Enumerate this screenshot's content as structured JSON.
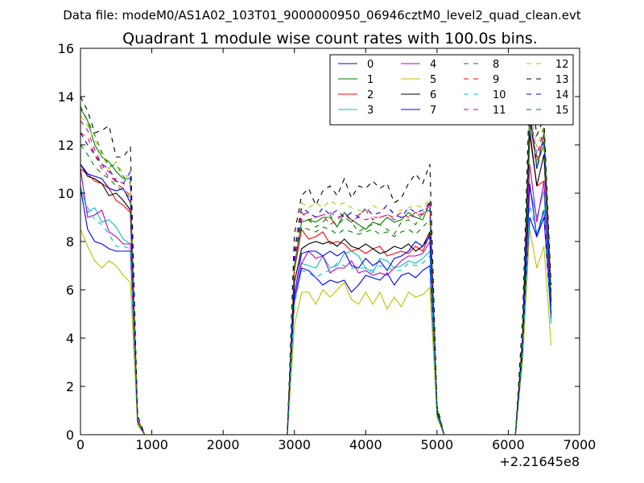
{
  "suptitle": "Data file: modeM0/AS1A02_103T01_9000000950_06946cztM0_level2_quad_clean.evt",
  "chart_data": {
    "type": "line",
    "title": "Quadrant 1 module wise count rates with 100.0s bins.",
    "xlabel": "",
    "ylabel": "",
    "x_offset_label": "+2.21645e8",
    "xlim": [
      0,
      7000
    ],
    "ylim": [
      0,
      16
    ],
    "x_ticks": [
      "0",
      "1000",
      "2000",
      "3000",
      "4000",
      "5000",
      "6000",
      "7000"
    ],
    "y_ticks": [
      "0",
      "2",
      "4",
      "6",
      "8",
      "10",
      "12",
      "14",
      "16"
    ],
    "grid": false,
    "legend_position": "top-right",
    "segments": [
      {
        "x": [
          0,
          100,
          200,
          300,
          400,
          500,
          600,
          700,
          800,
          900
        ]
      },
      {
        "x": [
          2900,
          3000,
          3100,
          3200,
          3300,
          3400,
          3500,
          3600,
          3700,
          3800,
          3900,
          4000,
          4100,
          4200,
          4300,
          4400,
          4500,
          4600,
          4700,
          4800,
          4900,
          5000,
          5100
        ]
      },
      {
        "x": [
          6100,
          6200,
          6300,
          6400,
          6500,
          6600
        ]
      }
    ],
    "series": [
      {
        "name": "0",
        "color": "#0000ff",
        "dash": "solid",
        "values": [
          [
            10.2,
            8.5,
            8.0,
            7.9,
            7.7,
            7.6,
            7.6,
            7.6,
            0.5,
            0
          ],
          [
            0,
            5.5,
            6.9,
            6.8,
            6.5,
            6.2,
            6.4,
            6.3,
            6.4,
            5.9,
            6.2,
            6.6,
            6.5,
            6.4,
            6.7,
            6.2,
            6.6,
            6.7,
            6.5,
            6.8,
            7.0,
            0.8,
            0
          ],
          [
            0,
            3.2,
            9.0,
            8.2,
            9.0,
            4.8
          ]
        ]
      },
      {
        "name": "1",
        "color": "#008000",
        "dash": "solid",
        "values": [
          [
            13.5,
            13.0,
            12.0,
            11.5,
            11.3,
            10.9,
            10.6,
            10.6,
            0.6,
            0
          ],
          [
            0,
            7.0,
            8.8,
            8.9,
            8.8,
            9.0,
            9.0,
            8.6,
            9.2,
            8.9,
            8.7,
            8.5,
            8.8,
            8.7,
            9.0,
            8.8,
            8.9,
            9.2,
            9.0,
            8.9,
            9.6,
            1.1,
            0
          ],
          [
            0,
            4.0,
            13.5,
            11.0,
            12.5,
            5.5
          ]
        ]
      },
      {
        "name": "2",
        "color": "#ff0000",
        "dash": "solid",
        "values": [
          [
            11.0,
            10.8,
            10.5,
            10.4,
            10.2,
            9.7,
            9.5,
            9.2,
            0.6,
            0
          ],
          [
            0,
            6.8,
            8.5,
            8.1,
            8.2,
            8.4,
            7.9,
            8.0,
            7.9,
            7.6,
            7.7,
            7.5,
            7.7,
            7.8,
            7.4,
            7.5,
            7.6,
            7.5,
            7.8,
            7.6,
            8.3,
            1.0,
            0
          ],
          [
            0,
            4.0,
            12.4,
            10.3,
            10.5,
            5.0
          ]
        ]
      },
      {
        "name": "3",
        "color": "#00bfbf",
        "dash": "solid",
        "values": [
          [
            10.3,
            9.2,
            9.4,
            8.8,
            8.9,
            8.6,
            8.1,
            7.9,
            0.5,
            0
          ],
          [
            0,
            5.5,
            7.1,
            7.0,
            6.9,
            7.4,
            6.9,
            7.0,
            7.5,
            7.6,
            7.4,
            6.9,
            6.7,
            7.3,
            7.2,
            6.9,
            7.0,
            7.2,
            7.1,
            7.3,
            7.6,
            0.8,
            0
          ],
          [
            0,
            3.6,
            10.2,
            9.0,
            10.1,
            4.6
          ]
        ]
      },
      {
        "name": "4",
        "color": "#bf00bf",
        "dash": "solid",
        "values": [
          [
            11.0,
            9.0,
            9.1,
            9.3,
            8.4,
            8.2,
            7.9,
            7.9,
            0.5,
            0
          ],
          [
            0,
            5.6,
            7.1,
            7.6,
            7.3,
            7.4,
            6.7,
            6.9,
            6.9,
            7.2,
            6.7,
            6.8,
            6.6,
            6.7,
            6.6,
            6.9,
            7.2,
            7.4,
            7.4,
            7.5,
            8.0,
            0.9,
            0
          ],
          [
            0,
            3.5,
            11.2,
            8.8,
            10.5,
            4.9
          ]
        ]
      },
      {
        "name": "5",
        "color": "#bfbf00",
        "dash": "solid",
        "values": [
          [
            8.5,
            7.8,
            7.2,
            6.9,
            7.2,
            7.0,
            6.6,
            6.3,
            0.4,
            0
          ],
          [
            0,
            4.5,
            5.9,
            5.9,
            5.4,
            6.0,
            5.7,
            6.0,
            6.3,
            5.6,
            5.4,
            5.9,
            5.4,
            5.9,
            5.2,
            5.7,
            5.3,
            5.9,
            5.7,
            5.8,
            6.1,
            0.7,
            0
          ],
          [
            0,
            3.0,
            8.5,
            6.9,
            7.8,
            3.7
          ]
        ]
      },
      {
        "name": "6",
        "color": "#000000",
        "dash": "solid",
        "values": [
          [
            11.2,
            10.7,
            10.6,
            10.4,
            9.9,
            10.0,
            9.7,
            9.3,
            0.6,
            0
          ],
          [
            0,
            6.3,
            7.7,
            7.9,
            8.0,
            7.9,
            8.0,
            7.8,
            8.1,
            7.8,
            7.7,
            7.9,
            7.7,
            7.5,
            7.6,
            7.8,
            7.7,
            7.9,
            7.6,
            7.8,
            8.4,
            0.9,
            0
          ],
          [
            0,
            3.8,
            12.6,
            10.3,
            11.6,
            5.6
          ]
        ]
      },
      {
        "name": "7",
        "color": "#0000ff",
        "dash": "solid",
        "values": [
          [
            11.2,
            10.8,
            10.7,
            10.6,
            10.2,
            10.1,
            10.2,
            9.6,
            0.6,
            0
          ],
          [
            0,
            5.8,
            7.5,
            7.6,
            7.6,
            7.4,
            7.6,
            7.4,
            7.6,
            7.0,
            6.9,
            7.3,
            7.0,
            7.2,
            6.8,
            7.3,
            7.4,
            7.6,
            8.0,
            7.8,
            8.2,
            0.9,
            0
          ],
          [
            0,
            3.5,
            10.4,
            8.2,
            9.3,
            5.0
          ]
        ]
      },
      {
        "name": "8",
        "color": "#008000",
        "dash": "dashed",
        "values": [
          [
            13.6,
            13.0,
            12.4,
            11.7,
            11.1,
            11.2,
            10.7,
            10.4,
            0.7,
            0
          ],
          [
            0,
            7.3,
            8.9,
            8.9,
            8.6,
            8.8,
            9.1,
            8.6,
            9.0,
            8.8,
            8.4,
            8.6,
            8.7,
            8.7,
            8.5,
            8.3,
            8.8,
            8.9,
            8.7,
            9.2,
            9.3,
            1.1,
            0
          ],
          [
            0,
            4.3,
            12.8,
            11.5,
            12.7,
            5.9
          ]
        ]
      },
      {
        "name": "9",
        "color": "#ff0000",
        "dash": "dashed",
        "values": [
          [
            12.5,
            12.3,
            11.6,
            11.0,
            10.9,
            10.4,
            10.2,
            9.9,
            0.6,
            0
          ],
          [
            0,
            7.5,
            9.2,
            8.9,
            9.0,
            9.1,
            8.7,
            8.9,
            9.2,
            8.8,
            9.1,
            9.3,
            8.9,
            9.0,
            9.1,
            9.0,
            9.2,
            9.0,
            9.2,
            9.1,
            9.7,
            1.0,
            0
          ],
          [
            0,
            4.2,
            13.0,
            11.3,
            12.4,
            5.6
          ]
        ]
      },
      {
        "name": "10",
        "color": "#00bfbf",
        "dash": "dashed",
        "values": [
          [
            10.2,
            9.4,
            8.9,
            8.7,
            8.3,
            7.8,
            7.8,
            7.7,
            0.5,
            0
          ],
          [
            0,
            5.4,
            6.8,
            6.7,
            6.5,
            6.7,
            6.8,
            7.1,
            7.0,
            6.9,
            6.9,
            6.9,
            6.8,
            7.0,
            6.9,
            6.8,
            6.8,
            7.1,
            7.0,
            7.1,
            7.4,
            0.8,
            0
          ],
          [
            0,
            3.3,
            9.5,
            8.3,
            9.4,
            4.5
          ]
        ]
      },
      {
        "name": "11",
        "color": "#bf00bf",
        "dash": "dashed",
        "values": [
          [
            13.0,
            12.6,
            11.8,
            11.2,
            10.6,
            10.6,
            10.4,
            10.3,
            0.6,
            0
          ],
          [
            0,
            7.2,
            9.1,
            9.2,
            9.0,
            9.1,
            9.2,
            9.0,
            9.1,
            8.9,
            9.0,
            8.9,
            9.0,
            9.0,
            9.1,
            8.9,
            9.0,
            9.1,
            9.0,
            9.2,
            9.5,
            1.0,
            0
          ],
          [
            0,
            4.1,
            13.3,
            11.6,
            12.6,
            5.7
          ]
        ]
      },
      {
        "name": "12",
        "color": "#bfbf00",
        "dash": "dashed",
        "values": [
          [
            13.2,
            12.8,
            12.2,
            11.6,
            11.0,
            11.3,
            10.8,
            10.6,
            0.7,
            0
          ],
          [
            0,
            7.8,
            9.6,
            9.4,
            9.6,
            9.4,
            9.7,
            9.5,
            9.6,
            9.4,
            9.3,
            9.2,
            9.5,
            9.3,
            9.4,
            9.2,
            9.3,
            9.4,
            9.5,
            9.4,
            9.8,
            1.1,
            0
          ],
          [
            0,
            4.4,
            13.6,
            11.9,
            12.8,
            5.9
          ]
        ]
      },
      {
        "name": "13",
        "color": "#000000",
        "dash": "dashed",
        "values": [
          [
            14.0,
            13.4,
            12.5,
            12.6,
            12.8,
            11.5,
            11.5,
            11.9,
            0.8,
            0
          ],
          [
            0,
            8.3,
            9.9,
            10.2,
            9.5,
            10.1,
            10.3,
            9.9,
            10.6,
            9.8,
            10.3,
            10.2,
            10.5,
            10.2,
            10.4,
            9.6,
            9.8,
            10.4,
            10.8,
            10.4,
            11.2,
            1.2,
            0
          ],
          [
            0,
            4.8,
            14.6,
            12.4,
            13.1,
            6.2
          ]
        ]
      },
      {
        "name": "14",
        "color": "#0000ff",
        "dash": "dashed",
        "values": [
          [
            12.5,
            12.0,
            11.6,
            11.2,
            11.0,
            10.5,
            10.4,
            10.9,
            0.6,
            0
          ],
          [
            0,
            7.5,
            9.4,
            9.2,
            9.0,
            9.4,
            9.1,
            9.3,
            9.0,
            9.2,
            9.0,
            9.4,
            9.1,
            9.2,
            9.5,
            9.1,
            9.0,
            9.4,
            9.2,
            9.3,
            9.6,
            1.0,
            0
          ],
          [
            0,
            4.0,
            13.2,
            11.0,
            12.2,
            5.4
          ]
        ]
      },
      {
        "name": "15",
        "color": "#008000",
        "dash": "dashed",
        "values": [
          [
            12.0,
            11.6,
            11.1,
            10.8,
            10.6,
            10.3,
            10.1,
            9.8,
            0.6,
            0
          ],
          [
            0,
            7.0,
            8.6,
            8.5,
            8.4,
            8.6,
            8.5,
            8.3,
            8.5,
            8.4,
            8.3,
            8.4,
            8.5,
            8.3,
            8.4,
            8.2,
            8.4,
            8.5,
            8.3,
            8.6,
            8.9,
            1.0,
            0
          ],
          [
            0,
            3.9,
            12.9,
            11.2,
            12.0,
            5.3
          ]
        ]
      }
    ]
  }
}
